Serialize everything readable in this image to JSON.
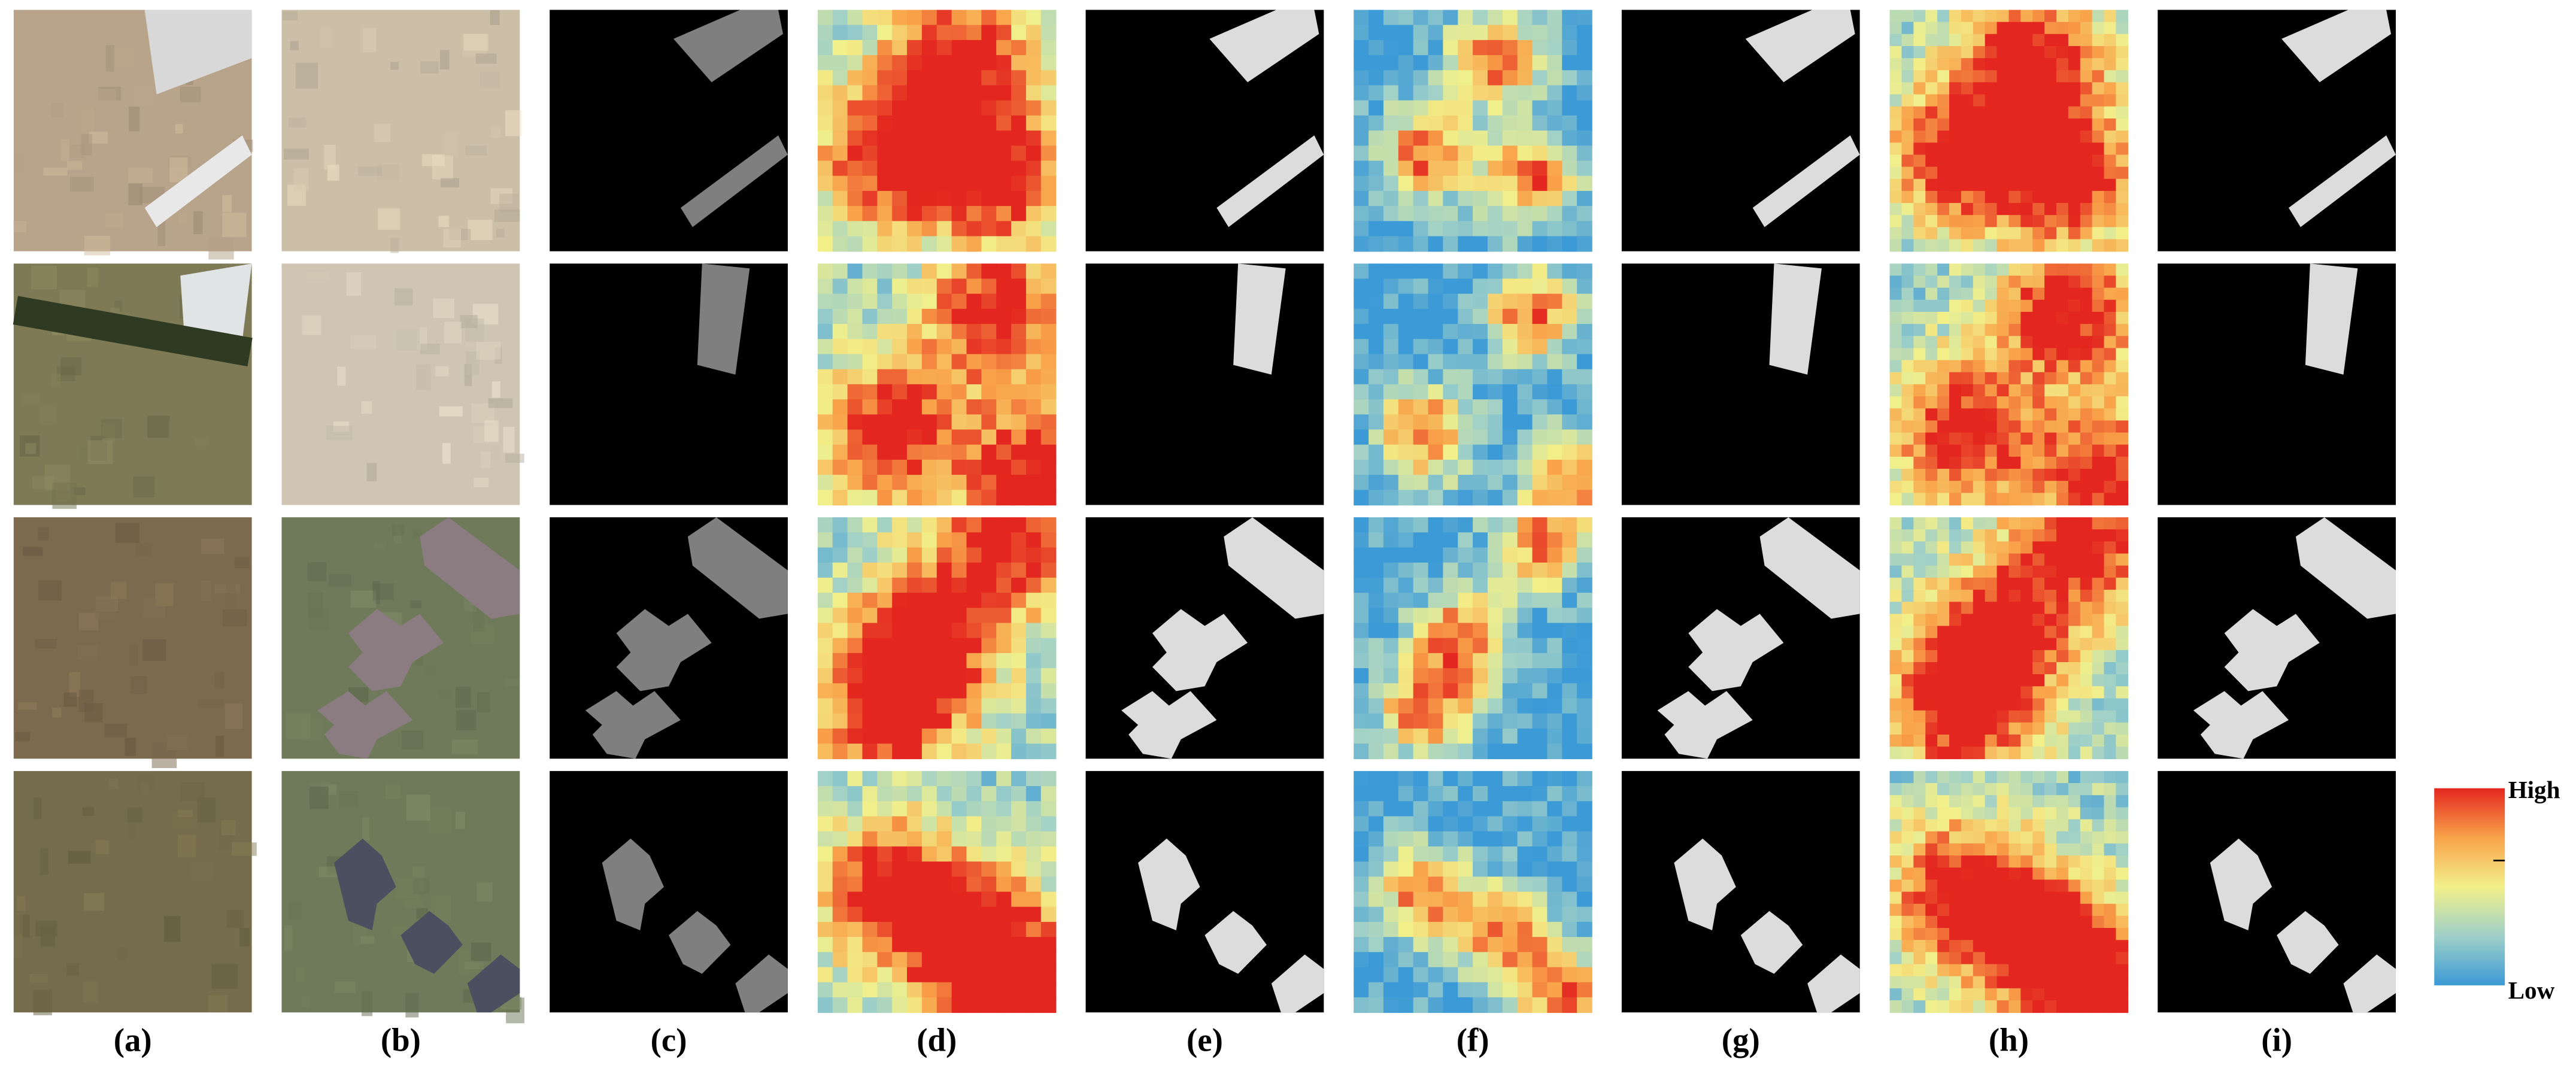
{
  "figure": {
    "column_labels": [
      "(a)",
      "(b)",
      "(c)",
      "(d)",
      "(e)",
      "(f)",
      "(g)",
      "(h)",
      "(i)"
    ],
    "colorbar": {
      "high_label": "High",
      "low_label": "Low"
    }
  }
}
